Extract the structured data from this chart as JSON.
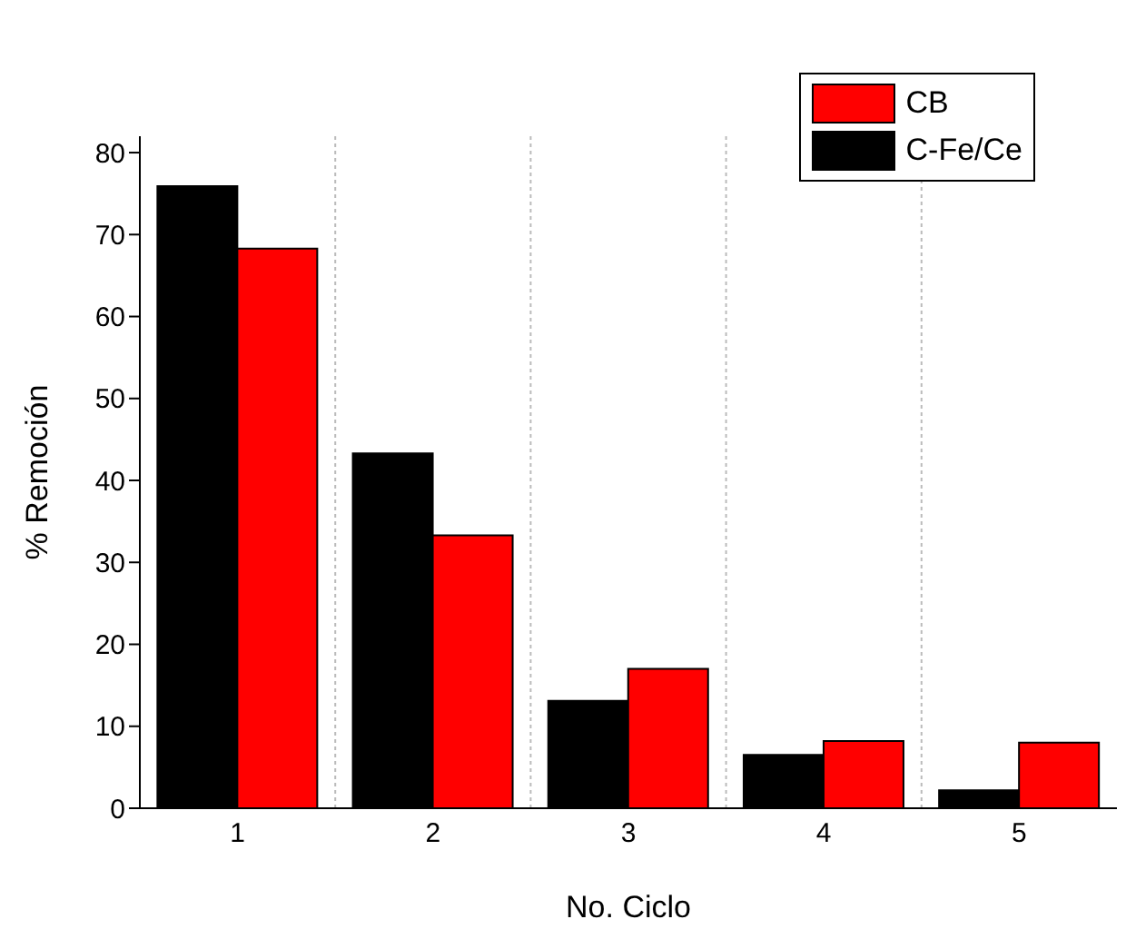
{
  "chart_data": {
    "type": "bar",
    "xlabel": "No. Ciclo",
    "ylabel": "% Remoción",
    "categories": [
      "1",
      "2",
      "3",
      "4",
      "5"
    ],
    "series": [
      {
        "name": "C-Fe/Ce",
        "color": "#000000",
        "values": [
          75.9,
          43.3,
          13.1,
          6.5,
          2.2
        ]
      },
      {
        "name": "CB",
        "color": "#ff0000",
        "values": [
          68.3,
          33.3,
          17.0,
          8.2,
          8.0
        ]
      }
    ],
    "ylim": [
      0,
      82
    ],
    "yticks": [
      0,
      10,
      20,
      30,
      40,
      50,
      60,
      70,
      80
    ],
    "grid": "x",
    "legend": "top right"
  }
}
